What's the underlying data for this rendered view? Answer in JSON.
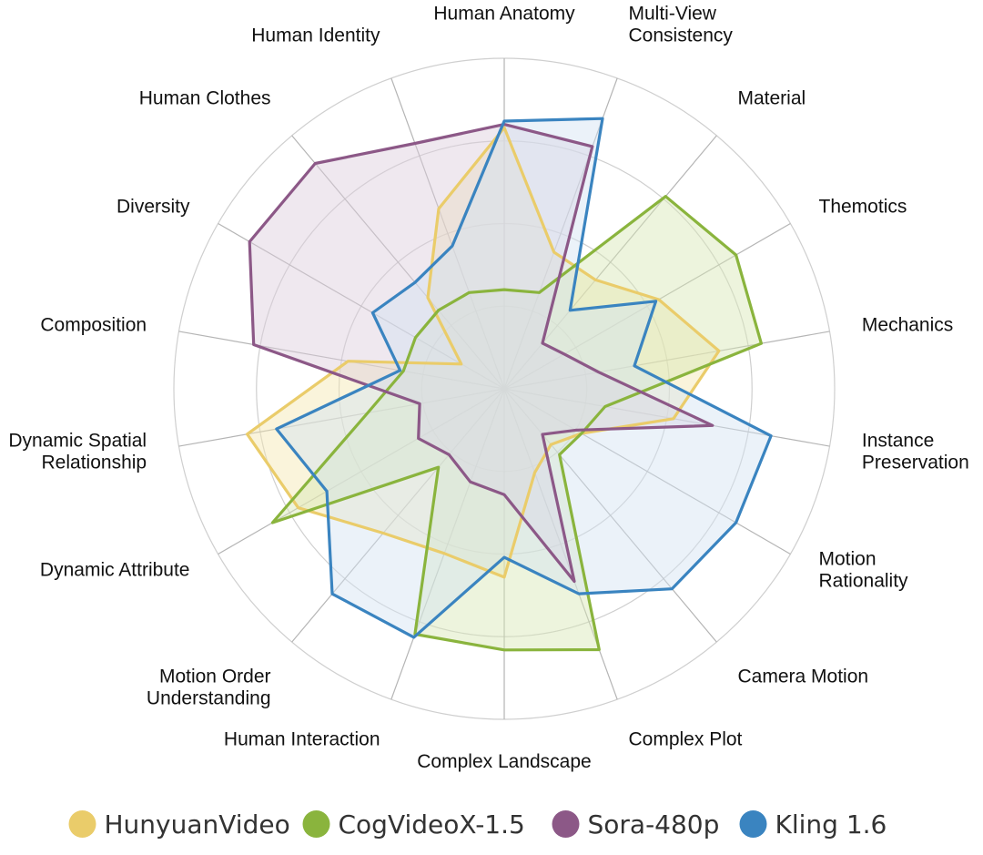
{
  "chart_data": {
    "type": "radar",
    "title": "",
    "axes": [
      "Human Anatomy",
      "Multi-View\nConsistency",
      "Material",
      "Themotics",
      "Mechanics",
      "Instance\nPreservation",
      "Motion\nRationality",
      "Camera Motion",
      "Complex Plot",
      "Complex Landscape",
      "Human Interaction",
      "Motion Order\nUnderstanding",
      "Dynamic Attribute",
      "Dynamic Spatial\nRelationship",
      "Composition",
      "Diversity",
      "Human Clothes",
      "Human Identity"
    ],
    "rmax": 1.0,
    "rings": [
      0.25,
      0.5,
      0.75,
      1.0
    ],
    "grid": true,
    "legend_position": "bottom",
    "series": [
      {
        "name": "HunyuanVideo",
        "color": "#eacc6a",
        "fill": "#f5e7b0",
        "values": [
          0.79,
          0.44,
          0.43,
          0.54,
          0.66,
          0.52,
          0.27,
          0.22,
          0.27,
          0.57,
          0.53,
          0.57,
          0.72,
          0.79,
          0.48,
          0.15,
          0.36,
          0.58
        ]
      },
      {
        "name": "CogVideoX-1.5",
        "color": "#8ab43d",
        "fill": "#d6e6b4",
        "values": [
          0.3,
          0.31,
          0.76,
          0.81,
          0.79,
          0.31,
          0.27,
          0.26,
          0.84,
          0.79,
          0.79,
          0.31,
          0.81,
          0.42,
          0.31,
          0.31,
          0.31,
          0.31
        ]
      },
      {
        "name": "Sora-480p",
        "color": "#8c5887",
        "fill": "#dccbdc",
        "values": [
          0.8,
          0.78,
          0.18,
          0.21,
          0.29,
          0.64,
          0.25,
          0.18,
          0.62,
          0.32,
          0.3,
          0.26,
          0.3,
          0.26,
          0.77,
          0.89,
          0.89,
          0.79
        ]
      },
      {
        "name": "Kling 1.6",
        "color": "#3a84c0",
        "fill": "#d2e3f2",
        "values": [
          0.81,
          0.87,
          0.31,
          0.53,
          0.4,
          0.82,
          0.81,
          0.79,
          0.66,
          0.51,
          0.8,
          0.81,
          0.62,
          0.7,
          0.32,
          0.46,
          0.42,
          0.46
        ]
      }
    ]
  }
}
